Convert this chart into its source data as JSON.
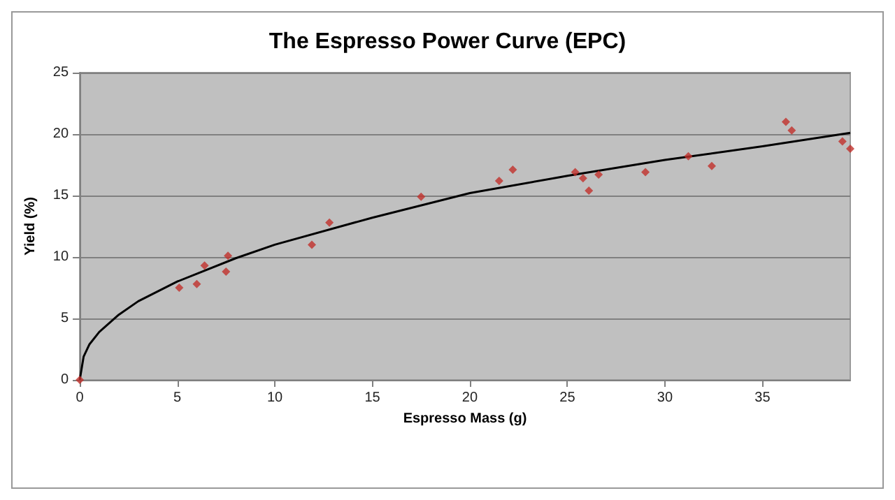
{
  "chart_data": {
    "type": "scatter",
    "title": "The Espresso Power Curve (EPC)",
    "xlabel": "Espresso Mass (g)",
    "ylabel": "Yield (%)",
    "xlim": [
      0,
      39.5
    ],
    "xticks": [
      0,
      5,
      10,
      15,
      20,
      25,
      30,
      35
    ],
    "ylim": [
      0,
      25
    ],
    "yticks": [
      0,
      5,
      10,
      15,
      20,
      25
    ],
    "grid": "y",
    "marker": "diamond",
    "series": [
      {
        "color": "#c0302a",
        "x": [
          0,
          5.1,
          6.0,
          6.4,
          7.5,
          7.6,
          11.9,
          12.8,
          17.5,
          21.5,
          22.2,
          25.4,
          25.8,
          26.1,
          26.6,
          29.0,
          31.2,
          32.4,
          36.2,
          36.5,
          39.1,
          39.5
        ],
        "values": [
          0,
          7.5,
          7.8,
          9.3,
          8.8,
          10.1,
          11.0,
          12.8,
          14.9,
          16.2,
          17.1,
          16.9,
          16.4,
          15.4,
          16.7,
          16.9,
          18.2,
          17.4,
          21.0,
          20.3,
          19.4,
          18.8
        ]
      },
      {
        "type": "line",
        "color": "#000000",
        "marker": "none",
        "line_style": "solid",
        "x": [
          0,
          0.2,
          0.5,
          1,
          2,
          3,
          5,
          8,
          10,
          15,
          20,
          25,
          30,
          35,
          39.5
        ],
        "values": [
          0,
          1.9,
          2.9,
          3.9,
          5.3,
          6.4,
          8.0,
          9.9,
          11.0,
          13.2,
          15.2,
          16.6,
          17.9,
          19.0,
          20.1
        ]
      }
    ]
  }
}
